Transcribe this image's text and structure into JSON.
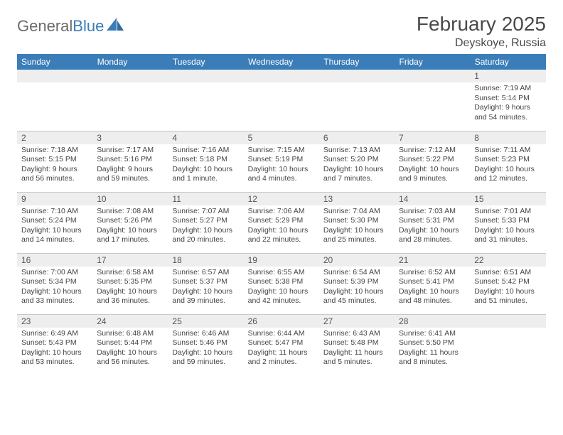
{
  "brand": {
    "part1": "General",
    "part2": "Blue"
  },
  "title": "February 2025",
  "location": "Deyskoye, Russia",
  "header_row": [
    "Sunday",
    "Monday",
    "Tuesday",
    "Wednesday",
    "Thursday",
    "Friday",
    "Saturday"
  ],
  "colors": {
    "header_bg": "#3a7db8",
    "header_text": "#ffffff",
    "daynum_bg": "#eeeeee",
    "divider": "#c9c9c9",
    "body_text": "#444444",
    "title_text": "#4a4a4a"
  },
  "weeks": [
    [
      {
        "n": "",
        "lines": []
      },
      {
        "n": "",
        "lines": []
      },
      {
        "n": "",
        "lines": []
      },
      {
        "n": "",
        "lines": []
      },
      {
        "n": "",
        "lines": []
      },
      {
        "n": "",
        "lines": []
      },
      {
        "n": "1",
        "lines": [
          "Sunrise: 7:19 AM",
          "Sunset: 5:14 PM",
          "Daylight: 9 hours and 54 minutes."
        ]
      }
    ],
    [
      {
        "n": "2",
        "lines": [
          "Sunrise: 7:18 AM",
          "Sunset: 5:15 PM",
          "Daylight: 9 hours and 56 minutes."
        ]
      },
      {
        "n": "3",
        "lines": [
          "Sunrise: 7:17 AM",
          "Sunset: 5:16 PM",
          "Daylight: 9 hours and 59 minutes."
        ]
      },
      {
        "n": "4",
        "lines": [
          "Sunrise: 7:16 AM",
          "Sunset: 5:18 PM",
          "Daylight: 10 hours and 1 minute."
        ]
      },
      {
        "n": "5",
        "lines": [
          "Sunrise: 7:15 AM",
          "Sunset: 5:19 PM",
          "Daylight: 10 hours and 4 minutes."
        ]
      },
      {
        "n": "6",
        "lines": [
          "Sunrise: 7:13 AM",
          "Sunset: 5:20 PM",
          "Daylight: 10 hours and 7 minutes."
        ]
      },
      {
        "n": "7",
        "lines": [
          "Sunrise: 7:12 AM",
          "Sunset: 5:22 PM",
          "Daylight: 10 hours and 9 minutes."
        ]
      },
      {
        "n": "8",
        "lines": [
          "Sunrise: 7:11 AM",
          "Sunset: 5:23 PM",
          "Daylight: 10 hours and 12 minutes."
        ]
      }
    ],
    [
      {
        "n": "9",
        "lines": [
          "Sunrise: 7:10 AM",
          "Sunset: 5:24 PM",
          "Daylight: 10 hours and 14 minutes."
        ]
      },
      {
        "n": "10",
        "lines": [
          "Sunrise: 7:08 AM",
          "Sunset: 5:26 PM",
          "Daylight: 10 hours and 17 minutes."
        ]
      },
      {
        "n": "11",
        "lines": [
          "Sunrise: 7:07 AM",
          "Sunset: 5:27 PM",
          "Daylight: 10 hours and 20 minutes."
        ]
      },
      {
        "n": "12",
        "lines": [
          "Sunrise: 7:06 AM",
          "Sunset: 5:29 PM",
          "Daylight: 10 hours and 22 minutes."
        ]
      },
      {
        "n": "13",
        "lines": [
          "Sunrise: 7:04 AM",
          "Sunset: 5:30 PM",
          "Daylight: 10 hours and 25 minutes."
        ]
      },
      {
        "n": "14",
        "lines": [
          "Sunrise: 7:03 AM",
          "Sunset: 5:31 PM",
          "Daylight: 10 hours and 28 minutes."
        ]
      },
      {
        "n": "15",
        "lines": [
          "Sunrise: 7:01 AM",
          "Sunset: 5:33 PM",
          "Daylight: 10 hours and 31 minutes."
        ]
      }
    ],
    [
      {
        "n": "16",
        "lines": [
          "Sunrise: 7:00 AM",
          "Sunset: 5:34 PM",
          "Daylight: 10 hours and 33 minutes."
        ]
      },
      {
        "n": "17",
        "lines": [
          "Sunrise: 6:58 AM",
          "Sunset: 5:35 PM",
          "Daylight: 10 hours and 36 minutes."
        ]
      },
      {
        "n": "18",
        "lines": [
          "Sunrise: 6:57 AM",
          "Sunset: 5:37 PM",
          "Daylight: 10 hours and 39 minutes."
        ]
      },
      {
        "n": "19",
        "lines": [
          "Sunrise: 6:55 AM",
          "Sunset: 5:38 PM",
          "Daylight: 10 hours and 42 minutes."
        ]
      },
      {
        "n": "20",
        "lines": [
          "Sunrise: 6:54 AM",
          "Sunset: 5:39 PM",
          "Daylight: 10 hours and 45 minutes."
        ]
      },
      {
        "n": "21",
        "lines": [
          "Sunrise: 6:52 AM",
          "Sunset: 5:41 PM",
          "Daylight: 10 hours and 48 minutes."
        ]
      },
      {
        "n": "22",
        "lines": [
          "Sunrise: 6:51 AM",
          "Sunset: 5:42 PM",
          "Daylight: 10 hours and 51 minutes."
        ]
      }
    ],
    [
      {
        "n": "23",
        "lines": [
          "Sunrise: 6:49 AM",
          "Sunset: 5:43 PM",
          "Daylight: 10 hours and 53 minutes."
        ]
      },
      {
        "n": "24",
        "lines": [
          "Sunrise: 6:48 AM",
          "Sunset: 5:44 PM",
          "Daylight: 10 hours and 56 minutes."
        ]
      },
      {
        "n": "25",
        "lines": [
          "Sunrise: 6:46 AM",
          "Sunset: 5:46 PM",
          "Daylight: 10 hours and 59 minutes."
        ]
      },
      {
        "n": "26",
        "lines": [
          "Sunrise: 6:44 AM",
          "Sunset: 5:47 PM",
          "Daylight: 11 hours and 2 minutes."
        ]
      },
      {
        "n": "27",
        "lines": [
          "Sunrise: 6:43 AM",
          "Sunset: 5:48 PM",
          "Daylight: 11 hours and 5 minutes."
        ]
      },
      {
        "n": "28",
        "lines": [
          "Sunrise: 6:41 AM",
          "Sunset: 5:50 PM",
          "Daylight: 11 hours and 8 minutes."
        ]
      },
      {
        "n": "",
        "lines": []
      }
    ]
  ]
}
